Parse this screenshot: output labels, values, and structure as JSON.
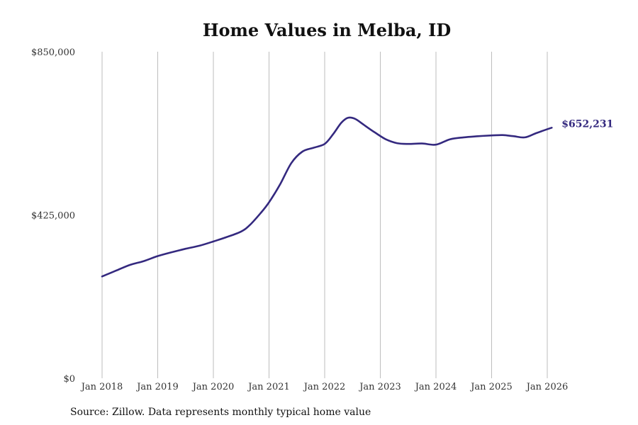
{
  "colors": {
    "line": "#34297f",
    "grid": "#bdbdbd",
    "text": "#333333"
  },
  "footer": {
    "source": "Source: Zillow. Data represents monthly typical home value"
  },
  "chart_data": {
    "type": "line",
    "title": "Home Values in Melba, ID",
    "xlabel": "",
    "ylabel": "",
    "ylim": [
      0,
      850000
    ],
    "y_ticks": [
      {
        "value": 850000,
        "label": "$850,000"
      },
      {
        "value": 425000,
        "label": "$425,000"
      },
      {
        "value": 0,
        "label": "$0"
      }
    ],
    "x_ticks": [
      {
        "t": 2018.0,
        "label": "Jan 2018"
      },
      {
        "t": 2019.0,
        "label": "Jan 2019"
      },
      {
        "t": 2020.0,
        "label": "Jan 2020"
      },
      {
        "t": 2021.0,
        "label": "Jan 2021"
      },
      {
        "t": 2022.0,
        "label": "Jan 2022"
      },
      {
        "t": 2023.0,
        "label": "Jan 2023"
      },
      {
        "t": 2024.0,
        "label": "Jan 2024"
      },
      {
        "t": 2025.0,
        "label": "Jan 2025"
      },
      {
        "t": 2026.0,
        "label": "Jan 2026"
      }
    ],
    "grid": "vertical",
    "end_label": "$652,231",
    "series": [
      {
        "name": "Typical home value",
        "points": [
          [
            2018.0,
            265000
          ],
          [
            2018.25,
            280000
          ],
          [
            2018.5,
            295000
          ],
          [
            2018.75,
            305000
          ],
          [
            2019.0,
            318000
          ],
          [
            2019.25,
            328000
          ],
          [
            2019.5,
            337000
          ],
          [
            2019.75,
            345000
          ],
          [
            2020.0,
            356000
          ],
          [
            2020.25,
            368000
          ],
          [
            2020.5,
            382000
          ],
          [
            2020.65,
            398000
          ],
          [
            2020.85,
            430000
          ],
          [
            2021.0,
            458000
          ],
          [
            2021.2,
            505000
          ],
          [
            2021.4,
            560000
          ],
          [
            2021.6,
            590000
          ],
          [
            2021.8,
            600000
          ],
          [
            2022.0,
            610000
          ],
          [
            2022.15,
            635000
          ],
          [
            2022.3,
            665000
          ],
          [
            2022.42,
            678000
          ],
          [
            2022.55,
            675000
          ],
          [
            2022.7,
            660000
          ],
          [
            2022.9,
            640000
          ],
          [
            2023.1,
            622000
          ],
          [
            2023.3,
            612000
          ],
          [
            2023.5,
            610000
          ],
          [
            2023.75,
            611000
          ],
          [
            2024.0,
            608000
          ],
          [
            2024.25,
            622000
          ],
          [
            2024.5,
            627000
          ],
          [
            2024.75,
            630000
          ],
          [
            2025.0,
            632000
          ],
          [
            2025.2,
            633000
          ],
          [
            2025.4,
            630000
          ],
          [
            2025.6,
            627000
          ],
          [
            2025.8,
            638000
          ],
          [
            2026.08,
            652231
          ]
        ]
      }
    ]
  }
}
